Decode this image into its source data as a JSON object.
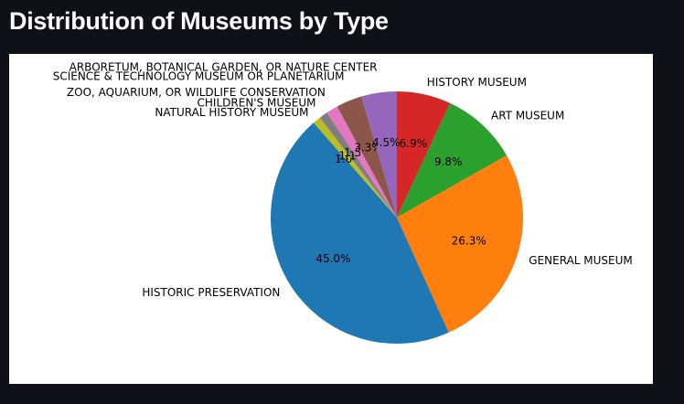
{
  "page": {
    "title": "Distribution of Museums by Type"
  },
  "chart_data": {
    "type": "pie",
    "title": "",
    "start_angle_deg": 90,
    "direction": "clockwise",
    "slices": [
      {
        "label": "HISTORY MUSEUM",
        "value": 6.9,
        "pct_label": "6.9%",
        "color": "#d62728"
      },
      {
        "label": "ART MUSEUM",
        "value": 9.8,
        "pct_label": "9.8%",
        "color": "#2ca02c"
      },
      {
        "label": "GENERAL MUSEUM",
        "value": 26.3,
        "pct_label": "26.3%",
        "color": "#ff7f0e"
      },
      {
        "label": "HISTORIC PRESERVATION",
        "value": 45.0,
        "pct_label": "45.0%",
        "color": "#1f77b4"
      },
      {
        "label": "NATURAL HISTORY MUSEUM",
        "value": 1.0,
        "pct_label": "1.0%",
        "color": "#bcbd22"
      },
      {
        "label": "CHILDREN'S MUSEUM",
        "value": 1.1,
        "pct_label": "1.1%",
        "color": "#7f7f7f"
      },
      {
        "label": "ZOO, AQUARIUM, OR WILDLIFE CONSERVATION",
        "value": 1.5,
        "pct_label": "1.5%",
        "color": "#e377c2"
      },
      {
        "label": "SCIENCE & TECHNOLOGY MUSEUM OR PLANETARIUM",
        "value": 3.3,
        "pct_label": "3.3%",
        "color": "#8c564b"
      },
      {
        "label": "ARBORETUM, BOTANICAL GARDEN, OR NATURE CENTER",
        "value": 4.5,
        "pct_label": "4.5%",
        "color": "#9467bd"
      }
    ]
  }
}
